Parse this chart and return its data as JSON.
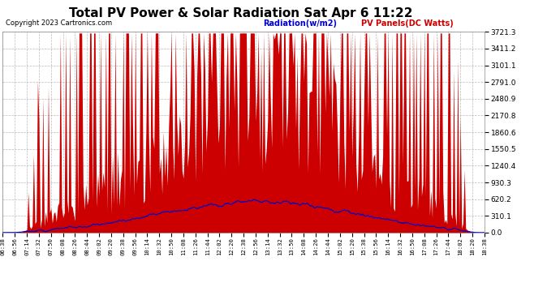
{
  "title": "Total PV Power & Solar Radiation Sat Apr 6 11:22",
  "copyright": "Copyright 2023 Cartronics.com",
  "legend_radiation": "Radiation(w/m2)",
  "legend_panels": "PV Panels(DC Watts)",
  "y_max": 3721.3,
  "y_ticks": [
    0.0,
    310.1,
    620.2,
    930.3,
    1240.4,
    1550.5,
    1860.6,
    2170.8,
    2480.9,
    2791.0,
    3101.1,
    3411.2,
    3721.3
  ],
  "background_color": "#ffffff",
  "grid_color": "#aaaaaa",
  "bar_color": "#cc0000",
  "line_color": "#0000cc",
  "title_color": "#000000",
  "copyright_color": "#000000",
  "radiation_label_color": "#0000cc",
  "panels_label_color": "#cc0000",
  "x_labels": [
    "06:38",
    "06:56",
    "07:14",
    "07:32",
    "07:50",
    "08:08",
    "08:26",
    "08:44",
    "09:02",
    "09:20",
    "09:38",
    "09:56",
    "10:14",
    "10:32",
    "10:50",
    "11:08",
    "11:26",
    "11:44",
    "12:02",
    "12:20",
    "12:38",
    "12:56",
    "13:14",
    "13:32",
    "13:50",
    "14:08",
    "14:26",
    "14:44",
    "15:02",
    "15:20",
    "15:38",
    "15:56",
    "16:14",
    "16:32",
    "16:50",
    "17:08",
    "17:26",
    "17:44",
    "18:02",
    "18:20",
    "18:38"
  ]
}
